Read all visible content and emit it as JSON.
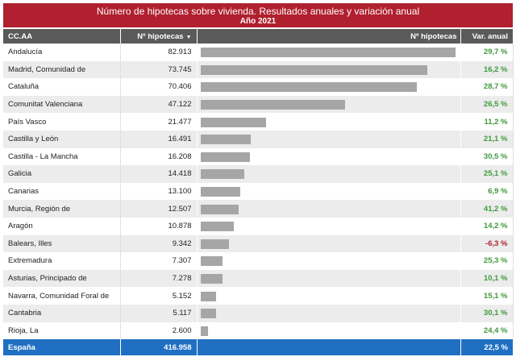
{
  "title": "Número de hipotecas sobre vivienda. Resultados anuales  y variación anual",
  "subtitle": "Año 2021",
  "headers": {
    "region": "CC.AA",
    "value": "Nº hipotecas",
    "bar": "Nº hipotecas",
    "variation": "Var. anual"
  },
  "colors": {
    "title_bg": "#b0202e",
    "header_bg": "#5a5a5a",
    "bar": "#a6a6a6",
    "positive": "#3f9a3a",
    "negative": "#b0202e",
    "total_bg": "#1f6fc2"
  },
  "chart_data": {
    "type": "bar",
    "orientation": "horizontal",
    "categories": [
      "Andalucía",
      "Madrid, Comunidad de",
      "Cataluña",
      "Comunitat Valenciana",
      "País Vasco",
      "Castilla y León",
      "Castilla - La Mancha",
      "Galicia",
      "Canarias",
      "Murcia, Región de",
      "Aragón",
      "Balears, Illes",
      "Extremadura",
      "Asturias, Principado de",
      "Navarra, Comunidad Foral de",
      "Cantabria",
      "Rioja, La"
    ],
    "values": [
      82913,
      73745,
      70406,
      47122,
      21477,
      16491,
      16208,
      14418,
      13100,
      12507,
      10878,
      9342,
      7307,
      7278,
      5152,
      5117,
      2600
    ],
    "value_labels": [
      "82.913",
      "73.745",
      "70.406",
      "47.122",
      "21.477",
      "16.491",
      "16.208",
      "14.418",
      "13.100",
      "12.507",
      "10.878",
      "9.342",
      "7.307",
      "7.278",
      "5.152",
      "5.117",
      "2.600"
    ],
    "variation": [
      29.7,
      16.2,
      28.7,
      26.5,
      11.2,
      21.1,
      30.5,
      25.1,
      6.9,
      41.2,
      14.2,
      -6.3,
      25.3,
      10.1,
      15.1,
      30.1,
      24.4
    ],
    "variation_labels": [
      "29,7 %",
      "16,2 %",
      "28,7 %",
      "26,5 %",
      "11,2 %",
      "21,1 %",
      "30,5 %",
      "25,1 %",
      "6,9 %",
      "41,2 %",
      "14,2 %",
      "-6,3 %",
      "25,3 %",
      "10,1 %",
      "15,1 %",
      "30,1 %",
      "24,4 %"
    ],
    "xlim": [
      0,
      82913
    ]
  },
  "total": {
    "label": "España",
    "value": "416.958",
    "variation": "22,5 %"
  }
}
